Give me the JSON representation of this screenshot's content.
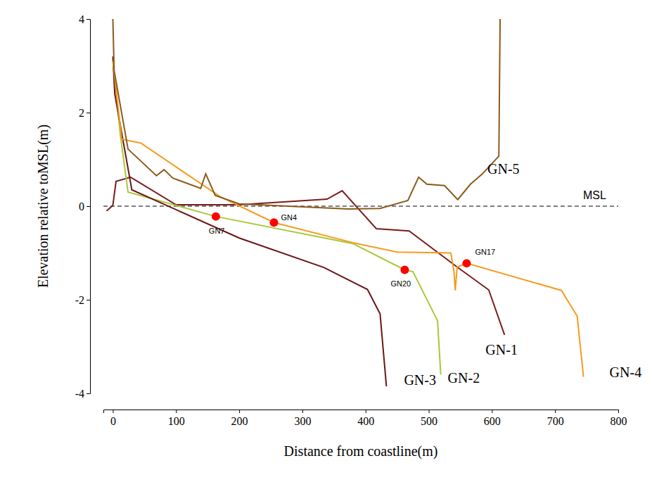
{
  "chart_data": {
    "type": "line",
    "x_label": "Distance from coastline(m)",
    "y_label": "Elevation relative toMSL(m)",
    "xlim": [
      -15,
      800
    ],
    "xticks": [
      0,
      100,
      200,
      300,
      400,
      500,
      600,
      700,
      800
    ],
    "ylim": [
      -4,
      4
    ],
    "yticks": [
      -4,
      -2,
      0,
      2,
      4
    ],
    "grid": false,
    "series": [
      {
        "name": "GN-1",
        "color": "#7a1c1c",
        "x": [
          -10,
          0,
          5,
          28,
          100,
          200,
          339,
          363,
          417,
          469,
          545,
          595,
          620
        ],
        "values": [
          -0.1,
          0.02,
          0.53,
          0.62,
          0.03,
          0.03,
          0.15,
          0.33,
          -0.48,
          -0.53,
          -1.3,
          -1.79,
          -2.75
        ]
      },
      {
        "name": "GN-2",
        "color": "#a8c83a",
        "x": [
          0,
          12,
          24,
          163,
          380,
          462,
          475,
          514,
          519
        ],
        "values": [
          3.1,
          1.5,
          0.3,
          -0.22,
          -0.8,
          -1.36,
          -1.4,
          -2.45,
          -3.6
        ]
      },
      {
        "name": "GN-3",
        "color": "#6b1515",
        "x": [
          0,
          3,
          30,
          200,
          334,
          403,
          423,
          433
        ],
        "values": [
          3.2,
          2.4,
          0.35,
          -0.68,
          -1.31,
          -1.78,
          -2.3,
          -3.85
        ]
      },
      {
        "name": "GN-4",
        "color": "#f39c1f",
        "x": [
          0,
          14,
          44,
          170,
          255,
          380,
          450,
          535,
          540,
          542,
          545,
          560,
          710,
          735,
          745
        ],
        "values": [
          3.1,
          1.43,
          1.35,
          0.2,
          -0.35,
          -0.78,
          -0.98,
          -1.0,
          -1.4,
          -1.8,
          -1.3,
          -1.22,
          -1.8,
          -2.35,
          -3.65
        ]
      },
      {
        "name": "GN-5",
        "color": "#8b5a1b",
        "x": [
          0,
          2,
          24,
          69,
          81,
          95,
          139,
          147,
          162,
          200,
          373,
          423,
          467,
          484,
          497,
          525,
          546,
          566,
          585,
          611,
          613
        ],
        "values": [
          4,
          2.9,
          1.22,
          0.65,
          0.78,
          0.6,
          0.38,
          0.69,
          0.23,
          0.05,
          -0.06,
          -0.05,
          0.12,
          0.62,
          0.47,
          0.44,
          0.14,
          0.47,
          0.69,
          1.07,
          4
        ]
      }
    ],
    "annotations": [
      {
        "text": "GN7",
        "x": 163,
        "y": -0.22,
        "color": "#ff0000",
        "marker": "circle"
      },
      {
        "text": "GN4",
        "x": 255,
        "y": -0.35,
        "color": "#ff0000",
        "marker": "circle"
      },
      {
        "text": "GN20",
        "x": 462,
        "y": -1.36,
        "color": "#ff0000",
        "marker": "circle"
      },
      {
        "text": "GN17",
        "x": 560,
        "y": -1.22,
        "color": "#ff0000",
        "marker": "circle"
      }
    ],
    "reference_lines": [
      {
        "y": 0,
        "label": "MSL",
        "line_style": "dashed",
        "color": "#000000"
      }
    ]
  }
}
